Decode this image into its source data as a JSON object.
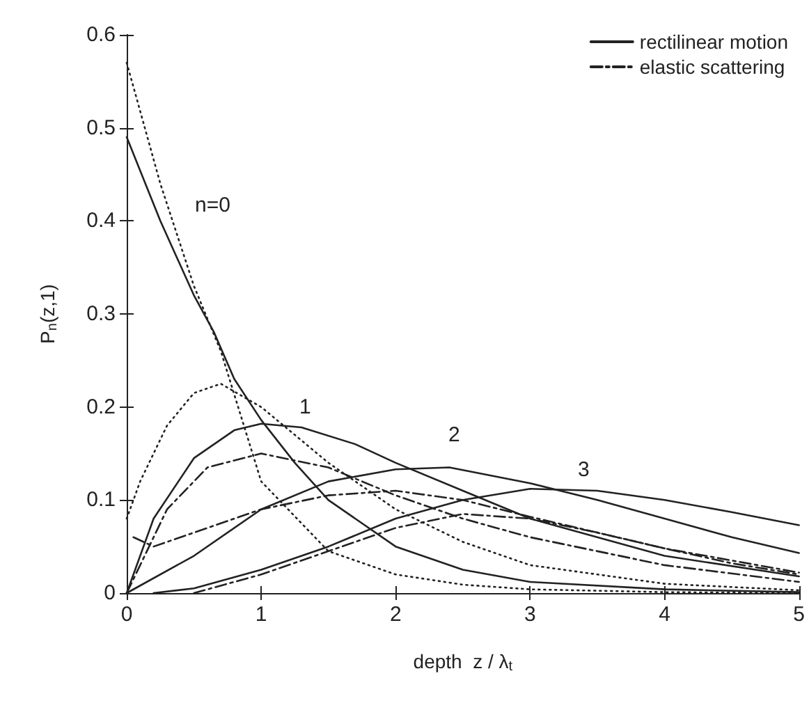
{
  "chart_data": {
    "type": "line",
    "xlabel": "depth  z / λ$_{t}$",
    "ylabel": "P$_{n}$(z,1)",
    "xlim": [
      0,
      5
    ],
    "ylim": [
      0,
      0.6
    ],
    "xticks": [
      0,
      1,
      2,
      3,
      4,
      5
    ],
    "yticks": [
      0,
      0.1,
      0.2,
      0.3,
      0.4,
      0.5,
      0.6
    ],
    "grid": false,
    "legend": "top right",
    "marker": "none",
    "series": [
      {
        "name": "rectilinear motion",
        "color": "#222222",
        "line_style": "solid",
        "x": [
          0,
          0.25,
          0.5,
          0.65,
          0.8,
          1,
          1.25,
          1.5,
          2,
          2.5,
          3,
          4,
          5
        ],
        "values": [
          0.49,
          0.4,
          0.32,
          0.28,
          0.23,
          0.186,
          0.14,
          0.1,
          0.05,
          0.025,
          0.012,
          0.004,
          0.001
        ]
      },
      {
        "color": "#222222",
        "line_style": "solid",
        "x": [
          0,
          0.2,
          0.5,
          0.8,
          1,
          1.3,
          1.7,
          2,
          2.5,
          3,
          4,
          5
        ],
        "values": [
          0,
          0.08,
          0.145,
          0.175,
          0.182,
          0.178,
          0.16,
          0.14,
          0.11,
          0.08,
          0.04,
          0.018
        ]
      },
      {
        "color": "#222222",
        "line_style": "solid",
        "x": [
          0,
          0.5,
          1,
          1.5,
          2,
          2.4,
          3,
          3.5,
          4,
          4.5,
          5
        ],
        "values": [
          0,
          0.04,
          0.09,
          0.12,
          0.133,
          0.135,
          0.118,
          0.1,
          0.08,
          0.06,
          0.043
        ]
      },
      {
        "color": "#222222",
        "line_style": "solid",
        "x": [
          0.2,
          0.5,
          1,
          1.5,
          2,
          2.5,
          3,
          3.5,
          4,
          4.5,
          5
        ],
        "values": [
          0,
          0.005,
          0.025,
          0.05,
          0.08,
          0.1,
          0.112,
          0.11,
          0.1,
          0.087,
          0.073
        ]
      },
      {
        "name": "elastic scattering",
        "color": "#222222",
        "line_style": "dashed",
        "x": [
          0,
          0.3,
          0.6,
          1,
          1.5,
          2,
          2.5,
          3,
          4,
          5
        ],
        "values": [
          0,
          0.09,
          0.135,
          0.15,
          0.135,
          0.105,
          0.08,
          0.06,
          0.03,
          0.012
        ]
      },
      {
        "color": "#222222",
        "line_style": "dashed",
        "x": [
          0.05,
          0.2,
          0.5,
          1,
          1.5,
          2,
          2.5,
          3,
          4,
          5
        ],
        "values": [
          0.06,
          0.05,
          0.065,
          0.09,
          0.105,
          0.11,
          0.1,
          0.082,
          0.048,
          0.022
        ]
      },
      {
        "color": "#222222",
        "line_style": "dashed",
        "x": [
          0.5,
          1,
          1.5,
          2,
          2.5,
          3,
          3.5,
          4,
          4.5,
          5
        ],
        "values": [
          0,
          0.02,
          0.045,
          0.07,
          0.085,
          0.08,
          0.065,
          0.048,
          0.032,
          0.02
        ]
      },
      {
        "color": "#222222",
        "line_style": "dotted",
        "x": [
          0,
          0.25,
          0.5,
          0.7,
          1,
          1.5,
          2,
          2.5,
          3,
          4,
          5
        ],
        "values": [
          0.57,
          0.44,
          0.33,
          0.26,
          0.12,
          0.045,
          0.02,
          0.009,
          0.004,
          0.001,
          0
        ]
      },
      {
        "color": "#222222",
        "line_style": "dotted",
        "x": [
          0,
          0.1,
          0.3,
          0.5,
          0.7,
          1,
          1.5,
          2,
          2.5,
          3,
          4,
          5
        ],
        "values": [
          0.08,
          0.12,
          0.18,
          0.215,
          0.225,
          0.2,
          0.14,
          0.09,
          0.055,
          0.03,
          0.01,
          0.003
        ]
      }
    ],
    "annotations": [
      "n=0",
      "1",
      "2",
      "3"
    ]
  }
}
